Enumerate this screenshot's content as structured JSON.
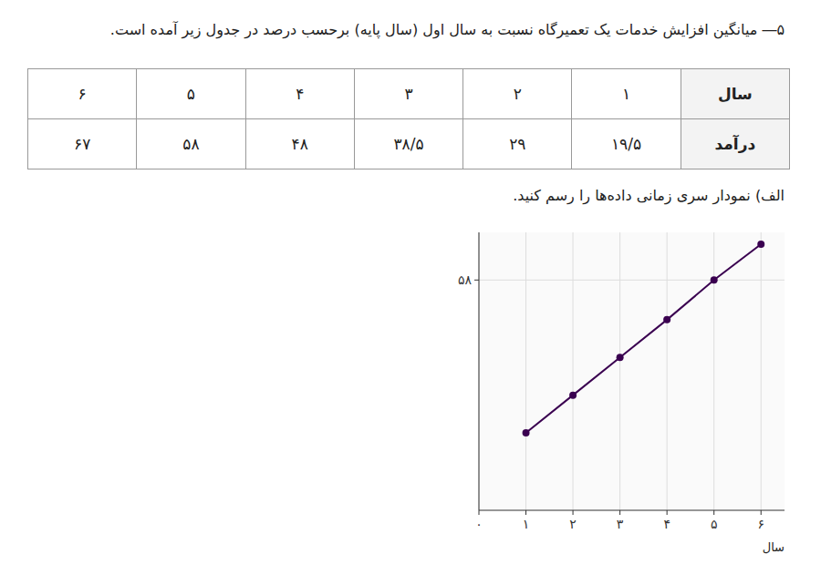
{
  "chart_data": {
    "type": "line",
    "title": "۵― میانگین افزایش خدمات یک تعمیرگاه نسبت به سال اول (سال پایه) برحسب درصد در جدول زیر آمده است.",
    "subtitle": "الف) نمودار سری زمانی داده‌ها را رسم کنید.",
    "x_label": "سال",
    "table_headers": [
      "سال",
      "درآمد"
    ],
    "x": [
      1,
      2,
      3,
      4,
      5,
      6
    ],
    "values": [
      19.5,
      29,
      38.5,
      48,
      58,
      67
    ],
    "value_labels": [
      "۱۹/۵",
      "۲۹",
      "۳۸/۵",
      "۴۸",
      "۵۸",
      "۶۷"
    ],
    "color": "#3a0050",
    "marker": "circle",
    "xlim": [
      0,
      6.5
    ],
    "ylim": [
      0,
      70
    ],
    "xticks": [
      {
        "value": 0,
        "label": "۰"
      },
      {
        "value": 1,
        "label": "۱"
      },
      {
        "value": 2,
        "label": "۲"
      },
      {
        "value": 3,
        "label": "۳"
      },
      {
        "value": 4,
        "label": "۴"
      },
      {
        "value": 5,
        "label": "۵"
      },
      {
        "value": 6,
        "label": "۶"
      }
    ],
    "yticks": [
      {
        "value": 58,
        "label": "۵۸"
      }
    ],
    "grid": true
  }
}
